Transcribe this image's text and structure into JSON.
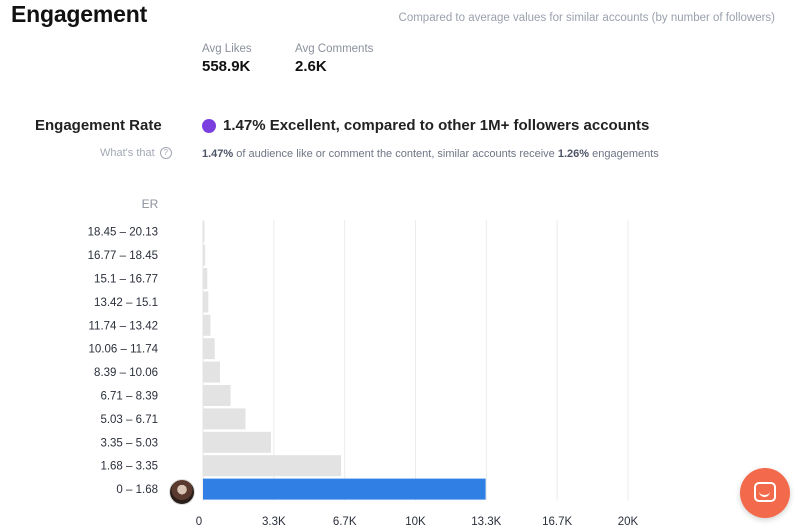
{
  "header": {
    "title": "Engagement",
    "compared_note": "Compared to average values for similar accounts (by number of followers)"
  },
  "metrics": {
    "avg_likes_label": "Avg Likes",
    "avg_likes_value": "558.9K",
    "avg_comments_label": "Avg Comments",
    "avg_comments_value": "2.6K"
  },
  "engagement_rate": {
    "label": "Engagement Rate",
    "summary": "1.47% Excellent, compared to other 1M+ followers accounts",
    "whats_that": "What's that",
    "help_icon": "question-circle-icon",
    "dot_color": "#7b3fe0",
    "desc_value": "1.47%",
    "desc_middle": " of audience like or comment the content, similar accounts receive ",
    "desc_similar": "1.26%",
    "desc_end": " engagements"
  },
  "chart_data": {
    "type": "bar",
    "orientation": "horizontal",
    "ylabel": "ER",
    "categories": [
      "18.45 – 20.13",
      "16.77 – 18.45",
      "15.1 – 16.77",
      "13.42 – 15.1",
      "11.74 – 13.42",
      "10.06 – 11.74",
      "8.39 – 10.06",
      "6.71 – 8.39",
      "5.03 – 6.71",
      "3.35 – 5.03",
      "1.68 – 3.35",
      "0 – 1.68"
    ],
    "values": [
      30,
      100,
      200,
      250,
      350,
      550,
      800,
      1300,
      2000,
      3200,
      6500,
      13300
    ],
    "highlight_index": 11,
    "highlight_color": "#2f7fe5",
    "bar_color": "#e3e3e3",
    "x_ticks": [
      "0",
      "3.3K",
      "6.7K",
      "10K",
      "13.3K",
      "16.7K",
      "20K"
    ],
    "x_tick_values": [
      0,
      3333,
      6667,
      10000,
      13333,
      16667,
      20000
    ],
    "xlim": [
      0,
      20000
    ],
    "grid": true
  },
  "widgets": {
    "avatar_icon": "profile-avatar-icon",
    "chat_icon": "chat-bubble-icon",
    "chat_color": "#f26a4b"
  }
}
